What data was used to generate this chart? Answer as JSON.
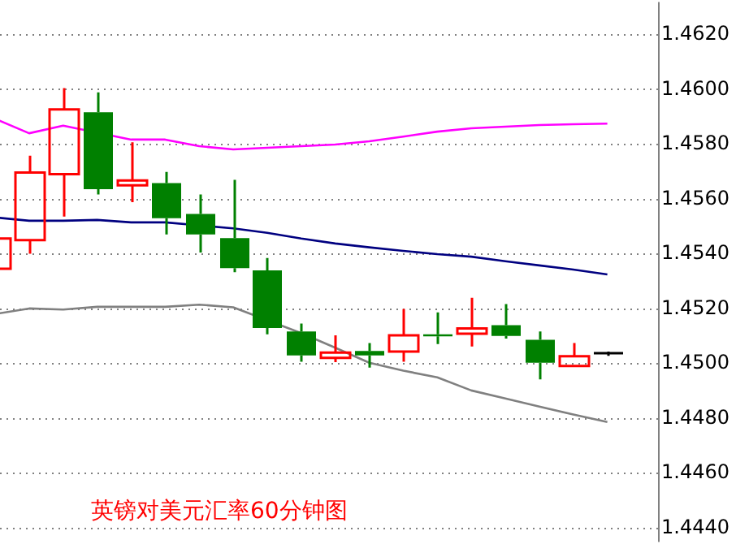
{
  "chart_data": {
    "type": "candlestick",
    "title": "英镑对美元汇率60分钟图",
    "categories": [
      null,
      null,
      null,
      null,
      null,
      null,
      null,
      null,
      null,
      null,
      null,
      null,
      null,
      null,
      null,
      null,
      null,
      null,
      null
    ],
    "ohlc": [
      [
        1.45347,
        1.45457,
        1.45347,
        1.45457
      ],
      [
        1.45451,
        1.45759,
        1.45402,
        1.45698
      ],
      [
        1.45692,
        1.46006,
        1.45537,
        1.45928
      ],
      [
        1.45918,
        1.4599,
        1.45618,
        1.45637
      ],
      [
        1.45651,
        1.45808,
        1.4559,
        1.45669
      ],
      [
        1.45659,
        1.457,
        1.45472,
        1.45531
      ],
      [
        1.45547,
        1.45618,
        1.45406,
        1.45472
      ],
      [
        1.45459,
        1.45671,
        1.45334,
        1.45349
      ],
      [
        1.45341,
        1.45386,
        1.45108,
        1.45131
      ],
      [
        1.45118,
        1.45147,
        1.45008,
        1.45031
      ],
      [
        1.45022,
        1.45104,
        1.45006,
        1.45041
      ],
      [
        1.45047,
        1.45076,
        1.44986,
        1.45031
      ],
      [
        1.45045,
        1.452,
        1.45008,
        1.45104
      ],
      [
        1.45108,
        1.45188,
        1.45072,
        1.451
      ],
      [
        1.4511,
        1.45241,
        1.45063,
        1.45129
      ],
      [
        1.45141,
        1.45218,
        1.45092,
        1.45102
      ],
      [
        1.45088,
        1.45118,
        1.44943,
        1.45004
      ],
      [
        1.44992,
        1.45076,
        1.44992,
        1.45028
      ],
      [
        1.45039,
        1.45045,
        1.45029,
        1.45039
      ]
    ],
    "colors": [
      "#ff0000",
      "#ff0000",
      "#ff0000",
      "#008000",
      "#ff0000",
      "#008000",
      "#008000",
      "#008000",
      "#008000",
      "#008000",
      "#ff0000",
      "#008000",
      "#ff0000",
      "#008000",
      "#ff0000",
      "#008000",
      "#008000",
      "#ff0000",
      "#000000"
    ],
    "series": [
      {
        "type": "line",
        "color": "#ff00ff",
        "values": [
          1.45894,
          1.45841,
          1.45869,
          null,
          1.45818,
          1.45818,
          1.45794,
          1.45782,
          1.45788,
          1.45794,
          1.458,
          1.45812,
          1.45829,
          1.45847,
          1.45859,
          1.45865,
          1.45871,
          1.45874,
          1.45876
        ]
      },
      {
        "type": "line",
        "color": "#000080",
        "values": [
          1.45534,
          1.45522,
          1.45522,
          1.45525,
          1.45516,
          1.45516,
          null,
          1.45494,
          1.45478,
          1.45457,
          1.45439,
          1.45425,
          1.45412,
          1.454,
          1.45391,
          1.45374,
          1.45359,
          1.45344,
          1.45326
        ]
      },
      {
        "type": "line",
        "color": "#808080",
        "values": [
          1.45182,
          1.45202,
          1.45198,
          1.45208,
          1.45208,
          1.45208,
          1.45216,
          1.45206,
          null,
          1.45112,
          1.45059,
          1.45004,
          1.44975,
          1.44951,
          1.44903,
          1.44874,
          1.44844,
          1.44815,
          1.44788
        ]
      }
    ],
    "ylim": [
      1.4435,
      1.4632
    ],
    "yticks": [
      {
        "value": 1.444,
        "label": "1.4440"
      },
      {
        "value": 1.446,
        "label": "1.4460"
      },
      {
        "value": 1.448,
        "label": "1.4480"
      },
      {
        "value": 1.45,
        "label": "1.4500"
      },
      {
        "value": 1.452,
        "label": "1.4520"
      },
      {
        "value": 1.454,
        "label": "1.4540"
      },
      {
        "value": 1.456,
        "label": "1.4560"
      },
      {
        "value": 1.458,
        "label": "1.4580"
      },
      {
        "value": 1.46,
        "label": "1.4600"
      },
      {
        "value": 1.462,
        "label": "1.4620"
      }
    ],
    "grid": "y",
    "marker": "none",
    "legend": false
  }
}
